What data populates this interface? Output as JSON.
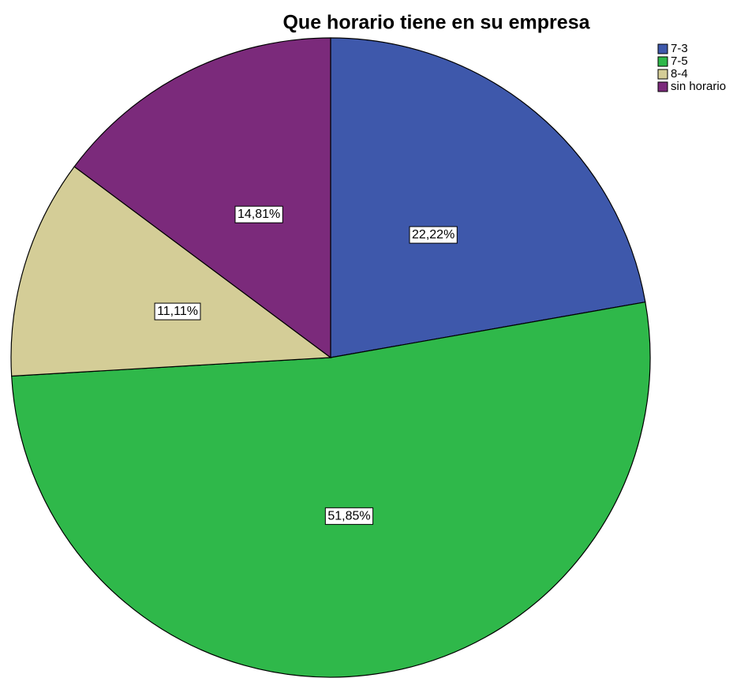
{
  "chart_data": {
    "type": "pie",
    "title": "Que horario tiene en su empresa",
    "categories": [
      "7-3",
      "7-5",
      "8-4",
      "sin horario"
    ],
    "values": [
      22.22,
      51.85,
      11.11,
      14.81
    ],
    "value_labels": [
      "22,22%",
      "51,85%",
      "11,11%",
      "14,81%"
    ],
    "colors": [
      "#3e58ab",
      "#2fb84a",
      "#d4cd97",
      "#7b2a7b"
    ],
    "legend": "top-right"
  }
}
